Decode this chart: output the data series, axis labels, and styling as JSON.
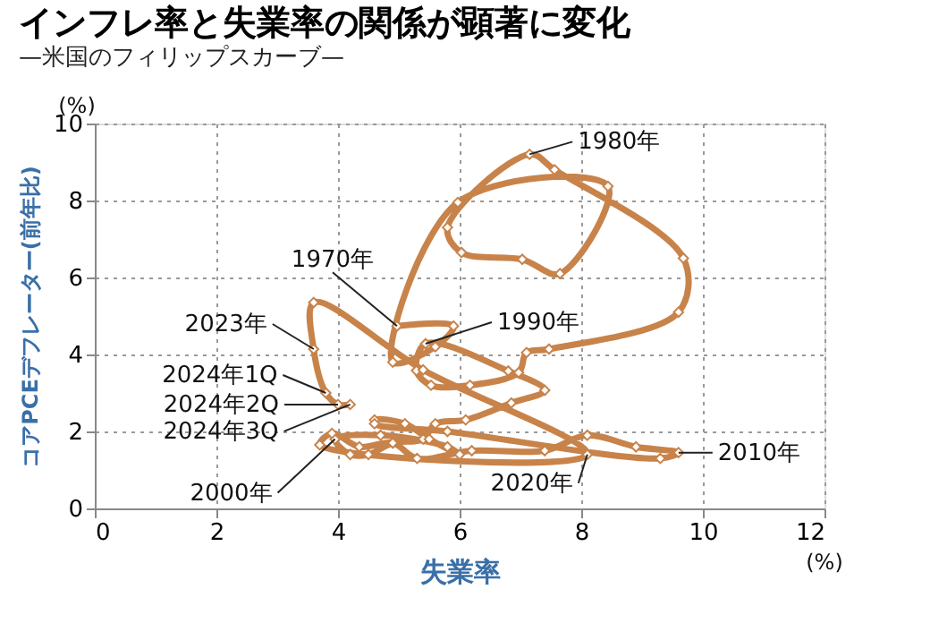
{
  "chart_data": {
    "type": "line",
    "title": "インフレ率と失業率の関係が顕著に変化",
    "subtitle": "—米国のフィリップスカーブ—",
    "xlabel": "失業率",
    "ylabel": "コアPCEデフレーター(前年比)",
    "series": [
      {
        "color": "#c8834a",
        "x": [
          4.97,
          5.9,
          5.6,
          4.9,
          5.97,
          8.44,
          7.65,
          7.03,
          6.03,
          5.8,
          7.15,
          7.56,
          9.68,
          9.6,
          7.47,
          7.1,
          6.97,
          6.17,
          5.53,
          5.29,
          5.44,
          6.8,
          7.4,
          6.85,
          6.1,
          5.6,
          5.4,
          4.9,
          4.5,
          4.2,
          3.95,
          4.7,
          5.8,
          6.0,
          5.5,
          5.1,
          4.6,
          4.6,
          5.8,
          9.3,
          9.6,
          8.9,
          8.1,
          7.4,
          6.2,
          5.3,
          4.9,
          4.35,
          3.9,
          3.7,
          8.1,
          5.4,
          3.6,
          3.6,
          3.8,
          4.0,
          4.2
        ],
        "values": [
          4.74,
          4.74,
          4.2,
          3.8,
          7.95,
          8.37,
          6.1,
          6.47,
          6.65,
          7.3,
          9.2,
          8.8,
          6.5,
          5.1,
          4.14,
          4.05,
          3.53,
          3.2,
          3.2,
          3.58,
          4.28,
          3.57,
          3.07,
          2.74,
          2.3,
          2.2,
          1.8,
          1.7,
          1.4,
          1.4,
          1.8,
          1.9,
          1.6,
          1.4,
          1.8,
          2.2,
          2.3,
          2.2,
          2.0,
          1.3,
          1.45,
          1.6,
          1.9,
          1.5,
          1.5,
          1.3,
          1.7,
          1.6,
          1.95,
          1.65,
          1.4,
          3.6,
          5.35,
          4.14,
          3.0,
          2.7,
          2.7
        ]
      }
    ],
    "xlim": [
      0,
      12
    ],
    "xticks": [
      0,
      2,
      4,
      6,
      8,
      10,
      12
    ],
    "ylim": [
      0,
      10
    ],
    "yticks": [
      0,
      2,
      4,
      6,
      8,
      10
    ],
    "grid": true,
    "marker": "diamond",
    "line_style": "solid",
    "annotations": [
      {
        "text": "1970年",
        "x": 4.97,
        "y": 4.74
      },
      {
        "text": "1980年",
        "x": 7.15,
        "y": 9.2
      },
      {
        "text": "1990年",
        "x": 5.44,
        "y": 4.28
      },
      {
        "text": "2000年",
        "x": 3.95,
        "y": 1.8
      },
      {
        "text": "2010年",
        "x": 9.6,
        "y": 1.45
      },
      {
        "text": "2020年",
        "x": 8.1,
        "y": 1.4
      },
      {
        "text": "2023年",
        "x": 3.6,
        "y": 4.14
      },
      {
        "text": "2024年1Q",
        "x": 3.8,
        "y": 3.0
      },
      {
        "text": "2024年2Q",
        "x": 4.0,
        "y": 2.7
      },
      {
        "text": "2024年3Q",
        "x": 4.2,
        "y": 2.7
      },
      "(%)",
      "(%)"
    ]
  }
}
